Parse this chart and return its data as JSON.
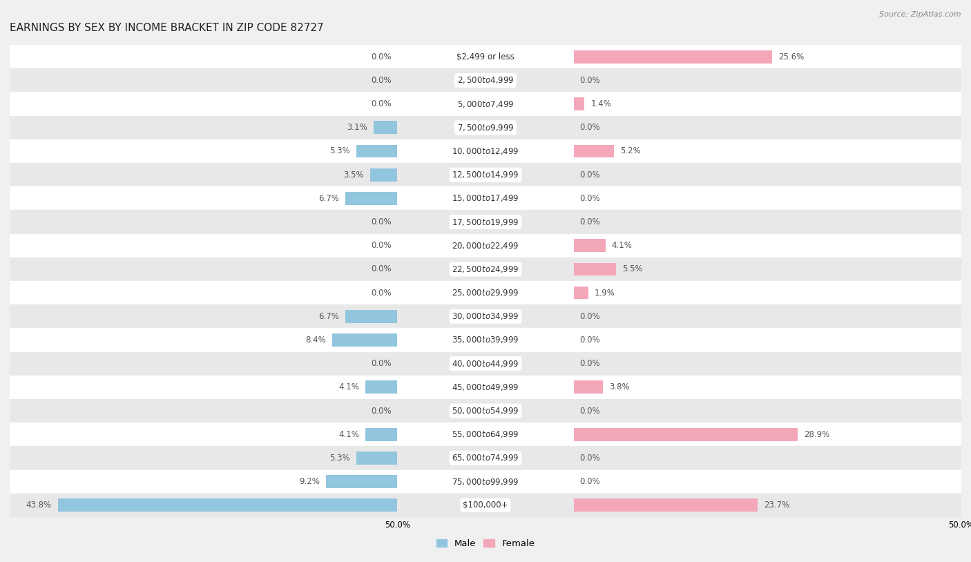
{
  "title": "EARNINGS BY SEX BY INCOME BRACKET IN ZIP CODE 82727",
  "source": "Source: ZipAtlas.com",
  "categories": [
    "$2,499 or less",
    "$2,500 to $4,999",
    "$5,000 to $7,499",
    "$7,500 to $9,999",
    "$10,000 to $12,499",
    "$12,500 to $14,999",
    "$15,000 to $17,499",
    "$17,500 to $19,999",
    "$20,000 to $22,499",
    "$22,500 to $24,999",
    "$25,000 to $29,999",
    "$30,000 to $34,999",
    "$35,000 to $39,999",
    "$40,000 to $44,999",
    "$45,000 to $49,999",
    "$50,000 to $54,999",
    "$55,000 to $64,999",
    "$65,000 to $74,999",
    "$75,000 to $99,999",
    "$100,000+"
  ],
  "male_values": [
    0.0,
    0.0,
    0.0,
    3.1,
    5.3,
    3.5,
    6.7,
    0.0,
    0.0,
    0.0,
    0.0,
    6.7,
    8.4,
    0.0,
    4.1,
    0.0,
    4.1,
    5.3,
    9.2,
    43.8
  ],
  "female_values": [
    25.6,
    0.0,
    1.4,
    0.0,
    5.2,
    0.0,
    0.0,
    0.0,
    4.1,
    5.5,
    1.9,
    0.0,
    0.0,
    0.0,
    3.8,
    0.0,
    28.9,
    0.0,
    0.0,
    23.7
  ],
  "male_color": "#92c5de",
  "female_color": "#f4a7b9",
  "axis_max": 50.0,
  "legend_male": "Male",
  "legend_female": "Female",
  "bg_color": "#f0f0f0",
  "row_bg_odd": "#ffffff",
  "row_bg_even": "#e8e8e8",
  "title_fontsize": 11,
  "label_fontsize": 8.5,
  "value_fontsize": 8.5,
  "bar_height": 0.55,
  "center_label_bg": "#ffffff",
  "center_label_color": "#333333",
  "value_color": "#555555"
}
